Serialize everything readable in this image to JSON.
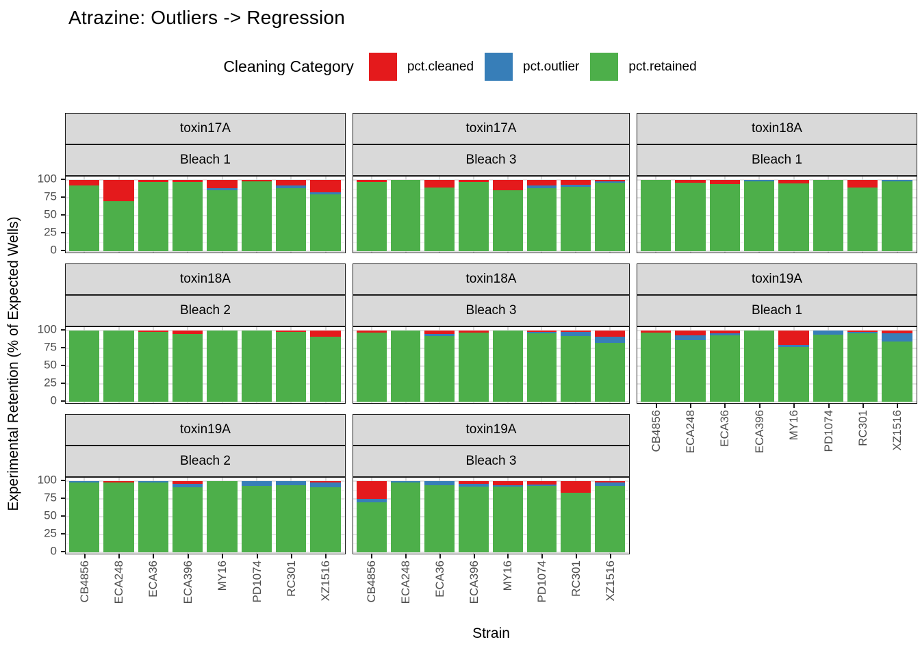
{
  "title": "Atrazine: Outliers -> Regression",
  "legend": {
    "title": "Cleaning Category",
    "entries": [
      {
        "label": "pct.cleaned",
        "color": "#E41A1C"
      },
      {
        "label": "pct.outlier",
        "color": "#377EB8"
      },
      {
        "label": "pct.retained",
        "color": "#4DAF4A"
      }
    ]
  },
  "axes": {
    "x_title": "Strain",
    "y_title": "Experimental Retention (% of Expected Wells)",
    "y_ticks": [
      100,
      75,
      50,
      25,
      0
    ]
  },
  "chart_data": {
    "type": "bar",
    "stacked": true,
    "title": "Atrazine: Outliers -> Regression",
    "xlabel": "Strain",
    "ylabel": "Experimental Retention (% of Expected Wells)",
    "ylim": [
      0,
      100
    ],
    "y_major_gridlines": [
      0,
      25,
      50,
      75,
      100
    ],
    "y_minor_gridlines": [
      12.5,
      37.5,
      62.5,
      87.5
    ],
    "legend_position": "top",
    "categories": [
      "CB4856",
      "ECA248",
      "ECA36",
      "ECA396",
      "MY16",
      "PD1074",
      "RC301",
      "XZ1516"
    ],
    "stack_order_top_to_bottom": [
      "pct.cleaned",
      "pct.outlier",
      "pct.retained"
    ],
    "colors": {
      "pct.cleaned": "#E41A1C",
      "pct.outlier": "#377EB8",
      "pct.retained": "#4DAF4A"
    },
    "facets": [
      {
        "toxin": "toxin17A",
        "bleach": "Bleach 1",
        "grid": {
          "row": 0,
          "col": 0
        },
        "series": [
          {
            "name": "pct.cleaned",
            "values": [
              8,
              30,
              3,
              3,
              12,
              2,
              8,
              17
            ]
          },
          {
            "name": "pct.outlier",
            "values": [
              0,
              0,
              0,
              0,
              2,
              0,
              4,
              3
            ]
          },
          {
            "name": "pct.retained",
            "values": [
              92,
              70,
              97,
              97,
              86,
              98,
              88,
              80
            ]
          }
        ]
      },
      {
        "toxin": "toxin17A",
        "bleach": "Bleach 3",
        "grid": {
          "row": 0,
          "col": 1
        },
        "series": [
          {
            "name": "pct.cleaned",
            "values": [
              3,
              0,
              11,
              3,
              14,
              8,
              7,
              2
            ]
          },
          {
            "name": "pct.outlier",
            "values": [
              0,
              0,
              0,
              0,
              0,
              4,
              3,
              2
            ]
          },
          {
            "name": "pct.retained",
            "values": [
              97,
              100,
              89,
              97,
              86,
              88,
              90,
              96
            ]
          }
        ]
      },
      {
        "toxin": "toxin18A",
        "bleach": "Bleach 1",
        "grid": {
          "row": 0,
          "col": 2
        },
        "series": [
          {
            "name": "pct.cleaned",
            "values": [
              0,
              4,
              6,
              0,
              5,
              0,
              11,
              0
            ]
          },
          {
            "name": "pct.outlier",
            "values": [
              0,
              0,
              0,
              2,
              0,
              0,
              0,
              2
            ]
          },
          {
            "name": "pct.retained",
            "values": [
              100,
              96,
              94,
              98,
              95,
              100,
              89,
              98
            ]
          }
        ]
      },
      {
        "toxin": "toxin18A",
        "bleach": "Bleach 2",
        "grid": {
          "row": 1,
          "col": 0
        },
        "series": [
          {
            "name": "pct.cleaned",
            "values": [
              0,
              0,
              2,
              5,
              0,
              0,
              2,
              9
            ]
          },
          {
            "name": "pct.outlier",
            "values": [
              0,
              0,
              0,
              0,
              0,
              0,
              0,
              0
            ]
          },
          {
            "name": "pct.retained",
            "values": [
              100,
              100,
              98,
              95,
              100,
              100,
              98,
              91
            ]
          }
        ]
      },
      {
        "toxin": "toxin18A",
        "bleach": "Bleach 3",
        "grid": {
          "row": 1,
          "col": 1
        },
        "series": [
          {
            "name": "pct.cleaned",
            "values": [
              3,
              0,
              5,
              3,
              0,
              2,
              2,
              9
            ]
          },
          {
            "name": "pct.outlier",
            "values": [
              0,
              0,
              3,
              0,
              0,
              2,
              6,
              8
            ]
          },
          {
            "name": "pct.retained",
            "values": [
              97,
              100,
              92,
              97,
              100,
              96,
              92,
              83
            ]
          }
        ]
      },
      {
        "toxin": "toxin19A",
        "bleach": "Bleach 1",
        "grid": {
          "row": 1,
          "col": 2
        },
        "series": [
          {
            "name": "pct.cleaned",
            "values": [
              3,
              7,
              4,
              0,
              20,
              0,
              2,
              4
            ]
          },
          {
            "name": "pct.outlier",
            "values": [
              0,
              6,
              3,
              0,
              3,
              6,
              2,
              11
            ]
          },
          {
            "name": "pct.retained",
            "values": [
              97,
              87,
              93,
              100,
              77,
              94,
              96,
              85
            ]
          }
        ]
      },
      {
        "toxin": "toxin19A",
        "bleach": "Bleach 2",
        "grid": {
          "row": 2,
          "col": 0
        },
        "series": [
          {
            "name": "pct.cleaned",
            "values": [
              0,
              2,
              0,
              4,
              0,
              0,
              0,
              2
            ]
          },
          {
            "name": "pct.outlier",
            "values": [
              2,
              0,
              2,
              5,
              0,
              7,
              6,
              7
            ]
          },
          {
            "name": "pct.retained",
            "values": [
              98,
              98,
              98,
              91,
              100,
              93,
              94,
              91
            ]
          }
        ]
      },
      {
        "toxin": "toxin19A",
        "bleach": "Bleach 3",
        "grid": {
          "row": 2,
          "col": 1
        },
        "series": [
          {
            "name": "pct.cleaned",
            "values": [
              25,
              0,
              0,
              4,
              6,
              5,
              16,
              2
            ]
          },
          {
            "name": "pct.outlier",
            "values": [
              5,
              2,
              6,
              4,
              2,
              2,
              0,
              5
            ]
          },
          {
            "name": "pct.retained",
            "values": [
              70,
              98,
              94,
              92,
              92,
              93,
              84,
              93
            ]
          }
        ]
      }
    ]
  }
}
